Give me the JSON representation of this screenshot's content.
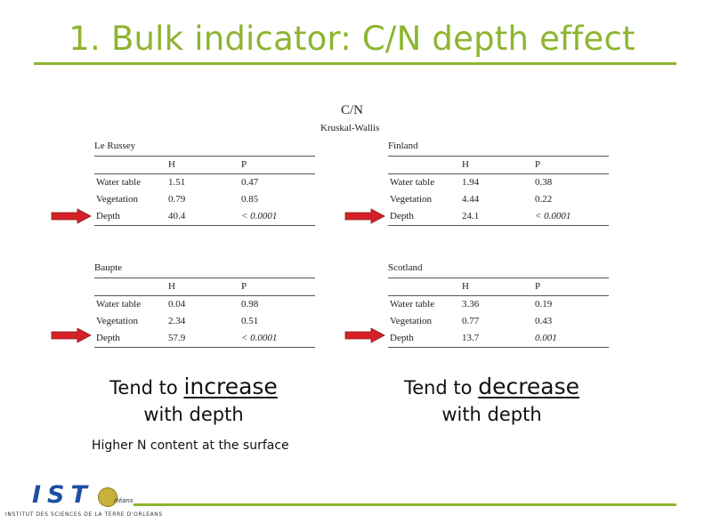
{
  "slide": {
    "title": "1. Bulk indicator: C/N depth effect"
  },
  "figure": {
    "header": "C/N",
    "subheader": "Kruskal-Wallis",
    "tables": [
      {
        "name": "Le Russey",
        "columns": [
          "",
          "H",
          "P"
        ],
        "rows": [
          [
            "Water table",
            "1.51",
            "0.47"
          ],
          [
            "Vegetation",
            "0.79",
            "0.85"
          ],
          [
            "Depth",
            "40.4",
            "< 0.0001"
          ]
        ]
      },
      {
        "name": "Finland",
        "columns": [
          "",
          "H",
          "P"
        ],
        "rows": [
          [
            "Water table",
            "1.94",
            "0.38"
          ],
          [
            "Vegetation",
            "4.44",
            "0.22"
          ],
          [
            "Depth",
            "24.1",
            "< 0.0001"
          ]
        ]
      },
      {
        "name": "Baupte",
        "columns": [
          "",
          "H",
          "P"
        ],
        "rows": [
          [
            "Water table",
            "0.04",
            "0.98"
          ],
          [
            "Vegetation",
            "2.34",
            "0.51"
          ],
          [
            "Depth",
            "57.9",
            "< 0.0001"
          ]
        ]
      },
      {
        "name": "Scotland",
        "columns": [
          "",
          "H",
          "P"
        ],
        "rows": [
          [
            "Water table",
            "3.36",
            "0.19"
          ],
          [
            "Vegetation",
            "0.77",
            "0.43"
          ],
          [
            "Depth",
            "13.7",
            "0.001"
          ]
        ]
      }
    ]
  },
  "captions": {
    "left": {
      "prefix": "Tend to ",
      "emphasis": "increase",
      "suffix": "with depth"
    },
    "right": {
      "prefix": "Tend to ",
      "emphasis": "decrease",
      "suffix": "with depth"
    },
    "note": "Higher N content at the surface"
  },
  "logo": {
    "text": "IST",
    "mini": "rléans",
    "subtitle": "INSTITUT DES SCIENCES DE LA TERRE D'ORLEANS"
  },
  "colors": {
    "title": "#8db52f",
    "arrow": "#d62027",
    "logo_text": "#1d4fa3"
  }
}
